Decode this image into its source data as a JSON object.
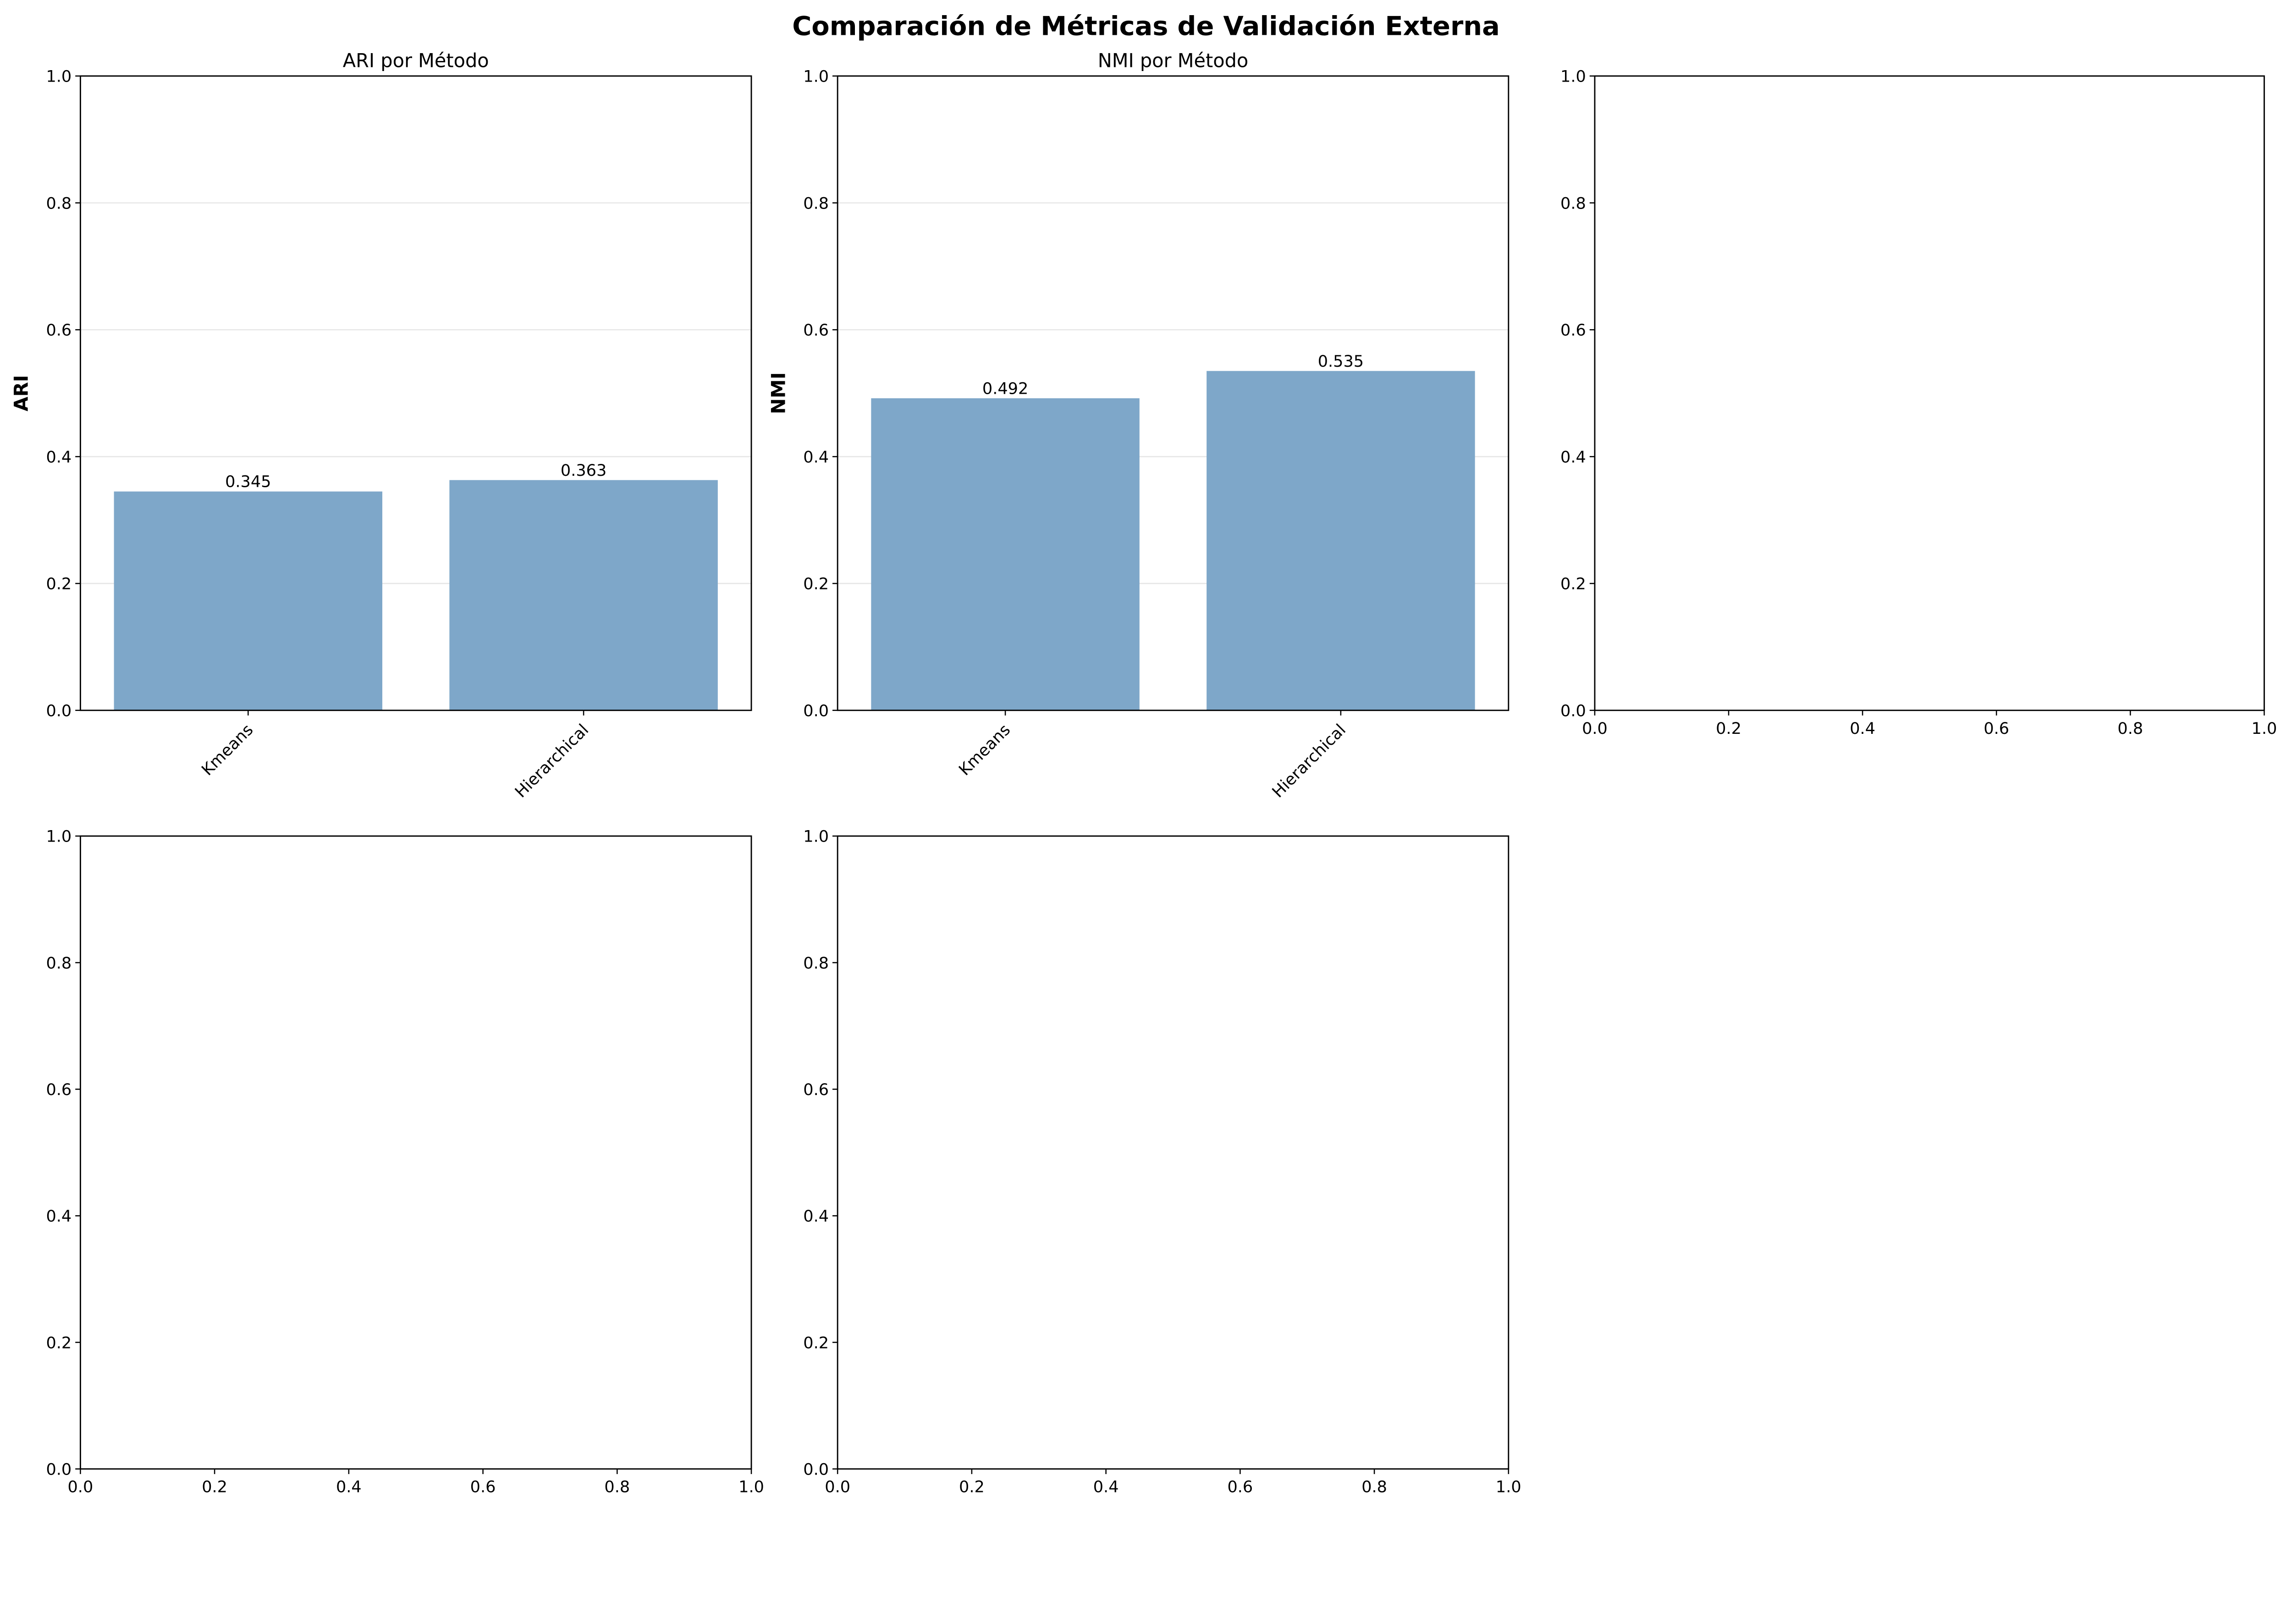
{
  "chart_data": {
    "suptitle": "Comparación de Métricas de Validación Externa",
    "bar_color": "#7ea7c9",
    "panels": [
      {
        "type": "bar",
        "title": "ARI por Método",
        "ylabel": "ARI",
        "categories": [
          "Kmeans",
          "Hierarchical"
        ],
        "values": [
          0.345,
          0.363
        ],
        "value_labels": [
          "0.345",
          "0.363"
        ],
        "ylim": [
          0,
          1
        ],
        "yticks": [
          "0.0",
          "0.2",
          "0.4",
          "0.6",
          "0.8",
          "1.0"
        ],
        "grid": true
      },
      {
        "type": "bar",
        "title": "NMI por Método",
        "ylabel": "NMI",
        "categories": [
          "Kmeans",
          "Hierarchical"
        ],
        "values": [
          0.492,
          0.535
        ],
        "value_labels": [
          "0.492",
          "0.535"
        ],
        "ylim": [
          0,
          1
        ],
        "yticks": [
          "0.0",
          "0.2",
          "0.4",
          "0.6",
          "0.8",
          "1.0"
        ],
        "grid": true
      },
      {
        "type": "empty",
        "xticks": [
          "0.0",
          "0.2",
          "0.4",
          "0.6",
          "0.8",
          "1.0"
        ],
        "yticks": [
          "0.0",
          "0.2",
          "0.4",
          "0.6",
          "0.8",
          "1.0"
        ]
      },
      {
        "type": "empty",
        "xticks": [
          "0.0",
          "0.2",
          "0.4",
          "0.6",
          "0.8",
          "1.0"
        ],
        "yticks": [
          "0.0",
          "0.2",
          "0.4",
          "0.6",
          "0.8",
          "1.0"
        ]
      },
      {
        "type": "empty",
        "xticks": [
          "0.0",
          "0.2",
          "0.4",
          "0.6",
          "0.8",
          "1.0"
        ],
        "yticks": [
          "0.0",
          "0.2",
          "0.4",
          "0.6",
          "0.8",
          "1.0"
        ]
      }
    ]
  }
}
